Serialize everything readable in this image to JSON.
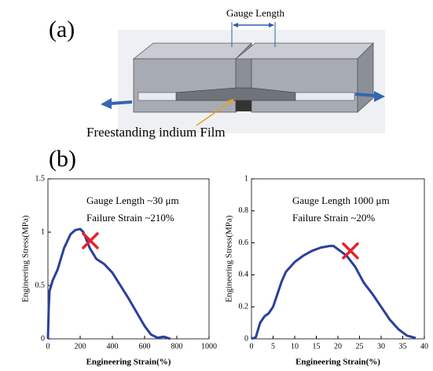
{
  "panels": {
    "a": "(a)",
    "b": "(b)"
  },
  "diagram": {
    "gauge_length": "Gauge Length",
    "film": "Freestanding indium Film"
  },
  "chart_data": [
    {
      "type": "line",
      "xlabel": "Engineering Strain(%)",
      "ylabel": "Engineering Stress(MPa)",
      "annotations": [
        "Gauge Length ~30 μm",
        "Failure Strain ~210%"
      ],
      "x": [
        0,
        5,
        10,
        30,
        60,
        100,
        140,
        170,
        200,
        220,
        260,
        300,
        350,
        400,
        450,
        500,
        550,
        600,
        640,
        680,
        720,
        760
      ],
      "values": [
        0,
        0.3,
        0.45,
        0.55,
        0.65,
        0.85,
        0.98,
        1.02,
        1.03,
        1.0,
        0.85,
        0.75,
        0.7,
        0.62,
        0.5,
        0.38,
        0.25,
        0.12,
        0.04,
        0.01,
        0.02,
        0
      ],
      "color": "#2b3f9c",
      "marker": {
        "x": 263,
        "y": 0.92,
        "color": "#e8202a"
      },
      "xlim": [
        0,
        1000
      ],
      "xticks": [
        0,
        200,
        400,
        600,
        800,
        1000
      ],
      "ylim": [
        0,
        1.5
      ],
      "yticks": [
        0,
        0.5,
        1,
        1.5
      ]
    },
    {
      "type": "line",
      "xlabel": "Engineering Strain(%)",
      "ylabel": "Engineering Stress(MPa)",
      "annotations": [
        "Gauge Length 1000 μm",
        "Failure Strain ~20%"
      ],
      "x": [
        0,
        1,
        2,
        3,
        4,
        5,
        6,
        7,
        8,
        10,
        12,
        14,
        16,
        18,
        19,
        20,
        22,
        24,
        26,
        28,
        30,
        32,
        34,
        36,
        38
      ],
      "values": [
        0,
        0.01,
        0.1,
        0.14,
        0.16,
        0.2,
        0.28,
        0.36,
        0.42,
        0.48,
        0.52,
        0.55,
        0.57,
        0.58,
        0.58,
        0.56,
        0.52,
        0.45,
        0.35,
        0.28,
        0.2,
        0.12,
        0.06,
        0.02,
        0.005
      ],
      "color": "#2b3f9c",
      "marker": {
        "x": 22.9,
        "y": 0.55,
        "color": "#e8202a"
      },
      "xlim": [
        0,
        40
      ],
      "xticks": [
        0,
        5,
        10,
        15,
        20,
        25,
        30,
        35,
        40
      ],
      "ylim": [
        0,
        1
      ],
      "yticks": [
        0,
        0.2,
        0.4,
        0.6,
        0.8,
        1
      ]
    }
  ]
}
